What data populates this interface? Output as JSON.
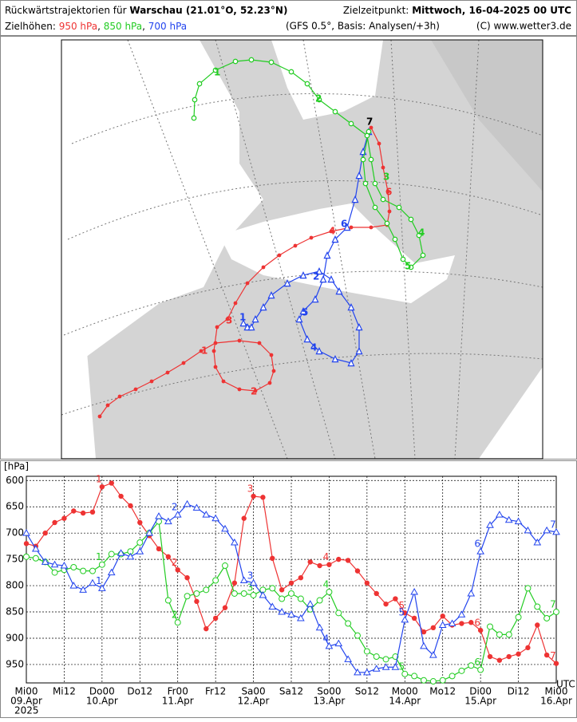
{
  "header": {
    "title_prefix": "Rückwärtstrajektorien für",
    "station": "Warschau (21.01°O, 52.23°N)",
    "target_label": "Zielzeitpunkt:",
    "target_time": "Mittwoch, 16-04-2025  00 UTC",
    "levels_label": "Zielhöhen:",
    "separator": ",",
    "model": "(GFS 0.5°, Basis: Analysen/+3h)",
    "copyright": "(C) www.wetter3.de"
  },
  "map": {
    "red_labels": [
      "1",
      "2",
      "3",
      "4",
      "6"
    ],
    "green_labels": [
      "1",
      "2",
      "3",
      "4",
      "5"
    ],
    "blue_labels": [
      "1",
      "2",
      "4",
      "5",
      "6"
    ],
    "end_label": "7"
  },
  "chart_data": {
    "type": "line",
    "y_label": "[hPa]",
    "x_unit": "UTC",
    "year": "2025",
    "categories": [
      "Mi00",
      null,
      null,
      null,
      "Mi12",
      null,
      null,
      null,
      "Do00",
      null,
      null,
      null,
      "Do12",
      null,
      null,
      null,
      "Fr00",
      null,
      null,
      null,
      "Fr12",
      null,
      null,
      null,
      "Sa00",
      null,
      null,
      null,
      "Sa12",
      null,
      null,
      null,
      "So00",
      null,
      null,
      null,
      "So12",
      null,
      null,
      null,
      "Mo00",
      null,
      null,
      null,
      "Mo12",
      null,
      null,
      null,
      "Di00",
      null,
      null,
      null,
      "Di12",
      null,
      null,
      null,
      "Mi00"
    ],
    "dates": [
      "09.Apr",
      "10.Apr",
      "11.Apr",
      "12.Apr",
      "13.Apr",
      "14.Apr",
      "15.Apr",
      "16.Apr"
    ],
    "ylim": [
      985,
      592
    ],
    "yticks": [
      600,
      650,
      700,
      750,
      800,
      850,
      900,
      950
    ],
    "grid": true,
    "point_labels": [
      "1",
      "2",
      "3",
      "4",
      "5",
      "6",
      "7"
    ],
    "series": [
      {
        "name": "950 hPa",
        "color": "#ee3333",
        "marker": "filled-circle",
        "values": [
          720,
          725,
          700,
          680,
          672,
          658,
          662,
          660,
          612,
          605,
          630,
          648,
          680,
          705,
          730,
          745,
          770,
          785,
          830,
          882,
          862,
          842,
          795,
          672,
          630,
          632,
          748,
          808,
          795,
          785,
          755,
          762,
          760,
          750,
          752,
          772,
          795,
          815,
          835,
          825,
          852,
          862,
          888,
          880,
          858,
          875,
          872,
          870,
          885,
          935,
          942,
          935,
          930,
          918,
          875,
          932,
          948
        ]
      },
      {
        "name": "850 hPa",
        "color": "#22cc22",
        "marker": "open-circle",
        "values": [
          745,
          748,
          755,
          775,
          770,
          765,
          772,
          772,
          760,
          740,
          740,
          735,
          718,
          700,
          678,
          828,
          870,
          820,
          815,
          808,
          790,
          762,
          815,
          815,
          818,
          808,
          805,
          825,
          815,
          825,
          845,
          828,
          812,
          852,
          872,
          895,
          925,
          935,
          940,
          935,
          968,
          972,
          980,
          982,
          980,
          972,
          962,
          952,
          960,
          878,
          893,
          893,
          860,
          805,
          840,
          862,
          850
        ]
      },
      {
        "name": "700 hPa",
        "color": "#2244ee",
        "marker": "open-triangle",
        "values": [
          700,
          730,
          755,
          760,
          762,
          800,
          808,
          795,
          805,
          775,
          738,
          745,
          735,
          700,
          668,
          678,
          665,
          645,
          652,
          665,
          672,
          692,
          718,
          790,
          795,
          818,
          840,
          850,
          855,
          862,
          835,
          880,
          915,
          910,
          940,
          965,
          965,
          958,
          955,
          955,
          865,
          812,
          915,
          932,
          875,
          872,
          855,
          815,
          735,
          685,
          665,
          675,
          678,
          695,
          718,
          695,
          698
        ]
      }
    ]
  }
}
